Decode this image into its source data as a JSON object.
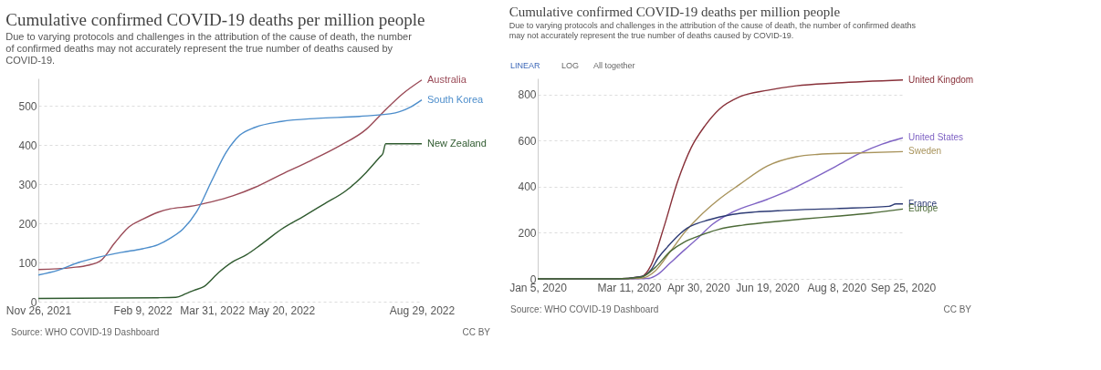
{
  "chart_data": [
    {
      "type": "line",
      "title": "Cumulative confirmed COVID-19 deaths per million people",
      "subtitle": "Due to varying protocols and challenges in the attribution of the cause of death, the number of confirmed deaths may not accurately represent the true number of deaths caused by COVID-19.",
      "x": [
        "2021-11-26",
        "2021-12-10",
        "2021-12-20",
        "2021-12-25",
        "2022-01-01",
        "2022-01-10",
        "2022-01-20",
        "2022-01-25",
        "2022-01-30",
        "2022-02-09",
        "2022-02-20",
        "2022-03-01",
        "2022-03-05",
        "2022-03-10",
        "2022-03-12",
        "2022-03-15",
        "2022-03-18",
        "2022-03-20",
        "2022-03-25",
        "2022-03-31",
        "2022-04-05",
        "2022-04-10",
        "2022-04-15",
        "2022-04-20",
        "2022-04-25",
        "2022-05-01",
        "2022-05-05",
        "2022-05-20",
        "2022-06-05",
        "2022-06-10",
        "2022-06-15",
        "2022-06-20",
        "2022-07-01",
        "2022-07-05",
        "2022-07-15",
        "2022-07-20",
        "2022-07-30",
        "2022-08-01",
        "2022-08-03",
        "2022-08-10",
        "2022-08-15",
        "2022-08-20",
        "2022-08-29"
      ],
      "series": [
        {
          "name": "Australia",
          "color": "#9a4a57",
          "values": [
            82,
            null,
            87,
            null,
            93,
            105,
            150,
            null,
            190,
            210,
            228,
            237,
            null,
            null,
            null,
            243,
            null,
            null,
            null,
            255,
            null,
            null,
            270,
            null,
            null,
            292,
            null,
            325,
            null,
            360,
            null,
            null,
            398,
            null,
            null,
            440,
            null,
            483,
            null,
            null,
            530,
            null,
            566
          ]
        },
        {
          "name": "South Korea",
          "color": "#4c8dcb",
          "values": [
            68,
            80,
            null,
            100,
            null,
            115,
            null,
            126,
            null,
            135,
            145,
            162,
            null,
            185,
            null,
            null,
            null,
            230,
            null,
            310,
            null,
            380,
            null,
            425,
            null,
            445,
            null,
            460,
            null,
            null,
            468,
            null,
            null,
            null,
            473,
            null,
            null,
            null,
            null,
            482,
            null,
            495,
            515
          ]
        },
        {
          "name": "New Zealand",
          "color": "#2f5a2f",
          "values": [
            8,
            null,
            null,
            null,
            null,
            null,
            null,
            null,
            null,
            null,
            10,
            null,
            11,
            null,
            20,
            null,
            29,
            null,
            38,
            null,
            75,
            null,
            102,
            null,
            120,
            null,
            145,
            185,
            218,
            null,
            null,
            250,
            null,
            282,
            null,
            330,
            370,
            378,
            403,
            null,
            null,
            null,
            403
          ]
        }
      ],
      "xlim": [
        "2021-11-26",
        "2022-08-29"
      ],
      "xticks": [
        {
          "value": "2021-11-26",
          "label": "Nov 26, 2021"
        },
        {
          "value": "2022-02-09",
          "label": "Feb 9, 2022"
        },
        {
          "value": "2022-03-31",
          "label": "Mar 31, 2022"
        },
        {
          "value": "2022-05-20",
          "label": "May 20, 2022"
        },
        {
          "value": "2022-08-29",
          "label": "Aug 29, 2022"
        }
      ],
      "ylim": [
        0,
        570
      ],
      "yticks": [
        0,
        100,
        200,
        300,
        400,
        500
      ],
      "grid": "y",
      "legend": false,
      "marker": "none",
      "line_style": "solid",
      "annotations": [
        "Source: WHO COVID-19 Dashboard",
        "CC BY"
      ]
    },
    {
      "type": "line",
      "title": "Cumulative confirmed COVID-19 deaths per million people",
      "subtitle": "Due to varying protocols and challenges in the attribution of the cause of death, the number of confirmed deaths may not accurately represent the true number of deaths caused by COVID-19.",
      "x": [
        "2020-01-05",
        "2020-03-01",
        "2020-03-20",
        "2020-03-25",
        "2020-03-27",
        "2020-03-30",
        "2020-04-01",
        "2020-04-05",
        "2020-04-08",
        "2020-04-10",
        "2020-04-15",
        "2020-04-20",
        "2020-04-22",
        "2020-04-25",
        "2020-04-29",
        "2020-04-30",
        "2020-05-05",
        "2020-05-07",
        "2020-05-10",
        "2020-05-15",
        "2020-05-25",
        "2020-05-30",
        "2020-06-01",
        "2020-06-10",
        "2020-06-19",
        "2020-07-01",
        "2020-07-05",
        "2020-07-10",
        "2020-07-15",
        "2020-07-20",
        "2020-07-25",
        "2020-08-08",
        "2020-08-20",
        "2020-08-25",
        "2020-09-01",
        "2020-09-10",
        "2020-09-15",
        "2020-09-20",
        "2020-09-25"
      ],
      "series": [
        {
          "name": "United Kingdom",
          "color": "#883039",
          "values": [
            0,
            0,
            10,
            null,
            60,
            null,
            null,
            220,
            null,
            null,
            420,
            null,
            null,
            570,
            null,
            null,
            665,
            null,
            null,
            735,
            null,
            790,
            null,
            null,
            818,
            null,
            null,
            838,
            null,
            null,
            null,
            850,
            null,
            null,
            null,
            null,
            null,
            null,
            863
          ]
        },
        {
          "name": "United States",
          "color": "#7f63c4",
          "values": [
            0,
            0,
            null,
            2,
            null,
            null,
            20,
            null,
            null,
            70,
            null,
            125,
            null,
            null,
            null,
            178,
            null,
            null,
            235,
            null,
            290,
            null,
            null,
            null,
            345,
            null,
            385,
            null,
            null,
            430,
            null,
            490,
            null,
            545,
            null,
            585,
            null,
            null,
            612
          ]
        },
        {
          "name": "Sweden",
          "color": "#a8935b",
          "values": [
            0,
            0,
            3,
            null,
            null,
            35,
            null,
            null,
            null,
            120,
            null,
            200,
            null,
            null,
            null,
            265,
            null,
            null,
            null,
            345,
            null,
            410,
            null,
            null,
            490,
            null,
            null,
            530,
            null,
            null,
            540,
            null,
            546,
            null,
            null,
            null,
            null,
            null,
            552
          ]
        },
        {
          "name": "France",
          "color": "#2c3a74",
          "values": [
            0,
            0,
            10,
            null,
            40,
            null,
            90,
            null,
            140,
            null,
            185,
            null,
            220,
            null,
            240,
            null,
            null,
            255,
            null,
            268,
            280,
            null,
            null,
            290,
            null,
            297,
            null,
            null,
            null,
            null,
            null,
            305,
            null,
            null,
            null,
            null,
            315,
            325,
            325
          ]
        },
        {
          "name": "Europe",
          "color": "#4c6a37",
          "values": [
            0,
            0,
            8,
            null,
            null,
            50,
            null,
            null,
            null,
            120,
            null,
            160,
            null,
            null,
            null,
            185,
            null,
            null,
            null,
            215,
            null,
            null,
            233,
            null,
            245,
            null,
            null,
            null,
            260,
            null,
            null,
            272,
            null,
            null,
            285,
            null,
            null,
            null,
            303
          ]
        }
      ],
      "xlim": [
        "2020-01-05",
        "2020-09-25"
      ],
      "xticks": [
        {
          "value": "2020-01-05",
          "label": "Jan 5, 2020"
        },
        {
          "value": "2020-03-11",
          "label": "Mar 11, 2020"
        },
        {
          "value": "2020-04-30",
          "label": "Apr 30, 2020"
        },
        {
          "value": "2020-06-19",
          "label": "Jun 19, 2020"
        },
        {
          "value": "2020-08-08",
          "label": "Aug 8, 2020"
        },
        {
          "value": "2020-09-25",
          "label": "Sep 25, 2020"
        }
      ],
      "ylim": [
        0,
        870
      ],
      "yticks": [
        0,
        200,
        400,
        600,
        800
      ],
      "grid": "y",
      "legend": false,
      "marker": "none",
      "line_style": "solid",
      "annotations": [
        "LINEAR",
        "LOG",
        "All together",
        "Source: WHO COVID-19 Dashboard",
        "CC BY"
      ]
    }
  ]
}
